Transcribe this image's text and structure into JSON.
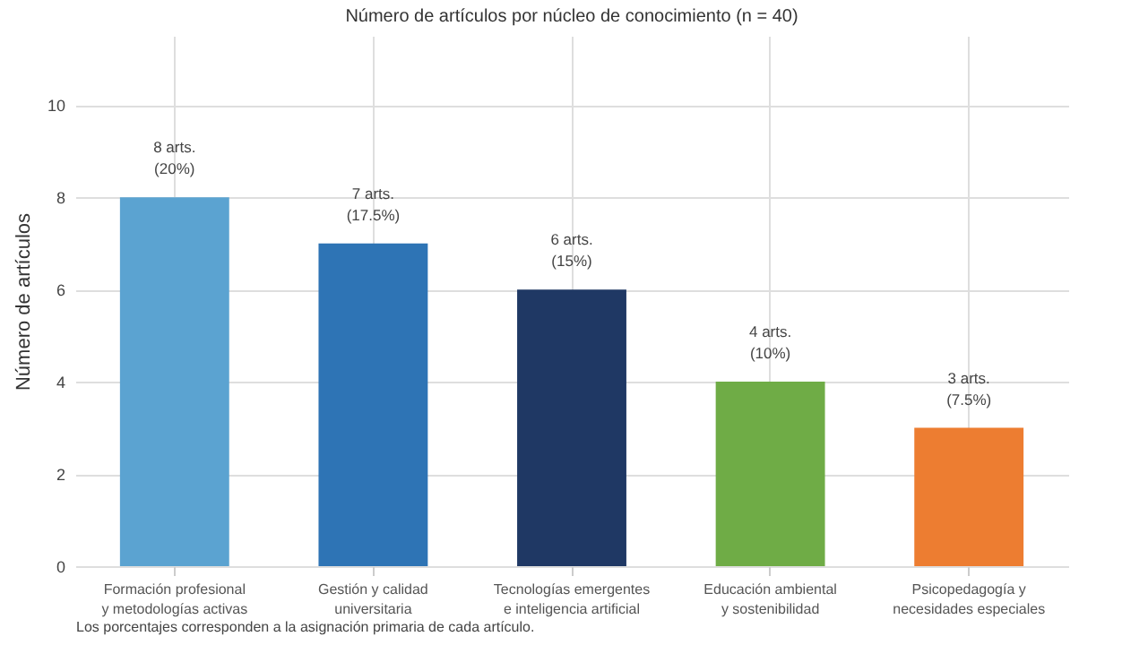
{
  "chart_data": {
    "type": "bar",
    "title": "Número de artículos por núcleo de conocimiento (n = 40)",
    "ylabel": "Número de artículos",
    "categories": [
      "Formación profesional\ny metodologías activas",
      "Gestión y calidad\nuniversitaria",
      "Tecnologías emergentes\ne inteligencia artificial",
      "Educación ambiental\ny sostenibilidad",
      "Psicopedagogía y\nnecesidades especiales"
    ],
    "values": [
      8,
      7,
      6,
      4,
      3
    ],
    "colors": [
      "#5ba3d1",
      "#2e74b5",
      "#1f3864",
      "#6fac46",
      "#ed7d31"
    ],
    "value_labels": [
      "8 arts.\n(20%)",
      "7 arts.\n(17.5%)",
      "6 arts.\n(15%)",
      "4 arts.\n(10%)",
      "3 arts.\n(7.5%)"
    ],
    "ylim": [
      0,
      11.5
    ],
    "yticks": [
      0,
      2,
      4,
      6,
      8,
      10
    ],
    "grid": true,
    "annotations": [
      "Los porcentajes corresponden a la asignación primaria de cada artículo."
    ]
  }
}
